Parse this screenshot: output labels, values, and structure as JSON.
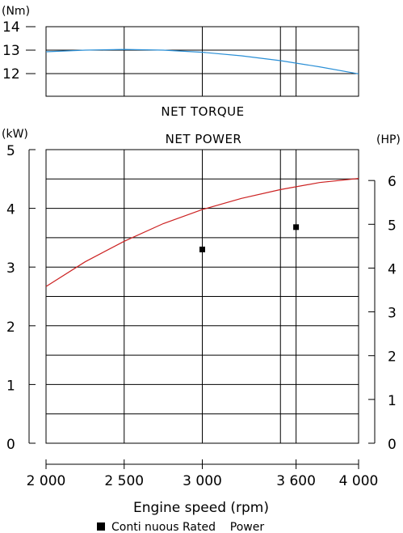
{
  "chart_data": [
    {
      "type": "line",
      "title": "NET TORQUE",
      "unit_left": "(Nm)",
      "ylim": [
        12,
        14
      ],
      "yticks": [
        12,
        13,
        14
      ],
      "xlim": [
        2000,
        4000
      ],
      "x_gridlines": [
        2500,
        3000,
        3500,
        3600
      ],
      "grid": true,
      "series": [
        {
          "color": "#2a8fd6",
          "x": [
            2000,
            2250,
            2500,
            2750,
            3000,
            3250,
            3500,
            3750,
            4000
          ],
          "y": [
            12.93,
            13.0,
            13.03,
            13.0,
            12.91,
            12.76,
            12.55,
            12.29,
            11.99
          ]
        }
      ]
    },
    {
      "type": "line",
      "title": "NET POWER",
      "unit_left": "(kW)",
      "unit_right": "(HP)",
      "ylim": [
        0,
        5
      ],
      "yticks": [
        0,
        1,
        2,
        3,
        4,
        5
      ],
      "y2lim": [
        0,
        6.705
      ],
      "y2ticks": [
        0,
        1,
        2,
        3,
        4,
        5,
        6
      ],
      "xlim": [
        2000,
        4000
      ],
      "xticks": [
        2000,
        2500,
        3000,
        3600,
        4000
      ],
      "xticklabels": [
        "2 000",
        "2 500",
        "3 000",
        "3 600",
        "4 000"
      ],
      "x_gridlines": [
        2500,
        3000,
        3500,
        3600
      ],
      "xlabel": "Engine speed (rpm)",
      "grid": true,
      "series": [
        {
          "color": "#cc2222",
          "x": [
            2000,
            2250,
            2500,
            2750,
            3000,
            3250,
            3500,
            3750,
            4000
          ],
          "y": [
            2.67,
            3.09,
            3.44,
            3.74,
            3.98,
            4.17,
            4.32,
            4.44,
            4.51
          ]
        }
      ],
      "markers": {
        "name": "Conti nuous Rated    Power",
        "color": "#000000",
        "points": [
          {
            "x": 3000,
            "y": 3.3
          },
          {
            "x": 3600,
            "y": 3.68
          }
        ]
      },
      "legend": "bottom"
    }
  ]
}
